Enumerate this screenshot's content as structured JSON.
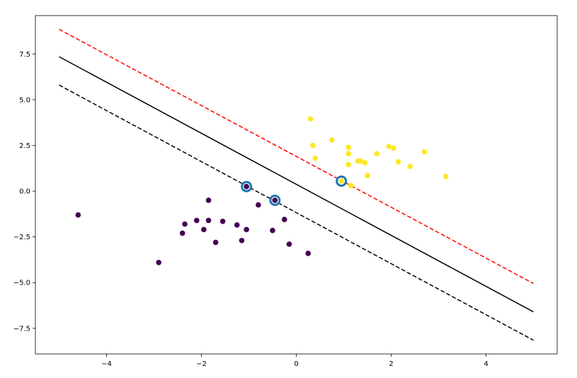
{
  "chart_data": {
    "type": "scatter",
    "title": "",
    "xlabel": "",
    "ylabel": "",
    "xlim": [
      -5.5,
      5.5
    ],
    "ylim": [
      -8.9,
      9.6
    ],
    "xticks": [
      -4,
      -2,
      0,
      2,
      4
    ],
    "xtick_labels": [
      "−4",
      "−2",
      "0",
      "2",
      "4"
    ],
    "yticks": [
      7.5,
      5.0,
      2.5,
      0.0,
      -2.5,
      -5.0,
      -7.5
    ],
    "ytick_labels": [
      "7.5",
      "5.0",
      "2.5",
      "0.0",
      "−2.5",
      "−5.0",
      "−7.5"
    ],
    "grid": false,
    "series": [
      {
        "class": 0,
        "color": "#440154",
        "points": [
          [
            -4.6,
            -1.3
          ],
          [
            -2.9,
            -3.9
          ],
          [
            -2.4,
            -2.3
          ],
          [
            -2.35,
            -1.8
          ],
          [
            -2.1,
            -1.6
          ],
          [
            -1.95,
            -2.1
          ],
          [
            -1.85,
            -1.6
          ],
          [
            -1.85,
            -0.5
          ],
          [
            -1.7,
            -2.8
          ],
          [
            -1.55,
            -1.65
          ],
          [
            -1.25,
            -1.85
          ],
          [
            -1.15,
            -2.7
          ],
          [
            -1.05,
            -2.1
          ],
          [
            -1.05,
            0.25
          ],
          [
            -0.8,
            -0.75
          ],
          [
            -0.5,
            -2.15
          ],
          [
            -0.45,
            -0.5
          ],
          [
            -0.25,
            -1.55
          ],
          [
            -0.15,
            -2.9
          ],
          [
            0.25,
            -3.4
          ]
        ]
      },
      {
        "class": 1,
        "color": "#fde725",
        "points": [
          [
            0.3,
            3.95
          ],
          [
            0.35,
            2.5
          ],
          [
            0.4,
            1.8
          ],
          [
            0.75,
            2.8
          ],
          [
            0.95,
            0.55
          ],
          [
            1.1,
            2.4
          ],
          [
            1.1,
            2.05
          ],
          [
            1.1,
            1.45
          ],
          [
            1.15,
            0.3
          ],
          [
            1.3,
            1.65
          ],
          [
            1.35,
            1.65
          ],
          [
            1.45,
            1.55
          ],
          [
            1.5,
            0.85
          ],
          [
            1.7,
            2.05
          ],
          [
            1.95,
            2.45
          ],
          [
            2.05,
            2.35
          ],
          [
            2.15,
            1.6
          ],
          [
            2.4,
            1.35
          ],
          [
            2.7,
            2.15
          ],
          [
            3.15,
            0.8
          ]
        ]
      }
    ],
    "support_vectors": {
      "color": "#1f77b4",
      "points": [
        [
          -1.05,
          0.25
        ],
        [
          -0.45,
          -0.5
        ],
        [
          0.95,
          0.55
        ]
      ]
    },
    "lines": [
      {
        "role": "decision-boundary",
        "color": "#000000",
        "style": "solid",
        "x": [
          -5,
          5
        ],
        "y": [
          7.35,
          -6.6
        ]
      },
      {
        "role": "margin-upper",
        "color": "#ff0000",
        "style": "dashed",
        "x": [
          -5,
          5
        ],
        "y": [
          8.85,
          -5.05
        ]
      },
      {
        "role": "margin-lower",
        "color": "#000000",
        "style": "dashed",
        "x": [
          -5,
          5
        ],
        "y": [
          5.8,
          -8.15
        ]
      }
    ]
  }
}
